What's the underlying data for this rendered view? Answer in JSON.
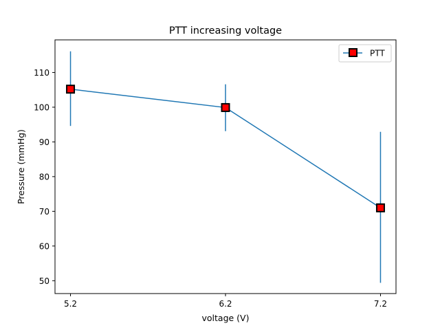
{
  "chart_data": {
    "type": "line",
    "title": "PTT increasing voltage",
    "xlabel": "voltage (V)",
    "ylabel": "Pressure (mmHg)",
    "x": [
      5.2,
      6.2,
      7.2
    ],
    "xticks": [
      "5.2",
      "6.2",
      "7.2"
    ],
    "xlim": [
      5.1,
      7.3
    ],
    "ylim": [
      46.3,
      119.4
    ],
    "yticks": [
      50,
      60,
      70,
      80,
      90,
      100,
      110
    ],
    "grid": false,
    "legend_position": "top-right",
    "series": [
      {
        "name": "PTT",
        "values": [
          105.2,
          99.9,
          71.0
        ],
        "error_low": [
          94.6,
          93.1,
          49.4
        ],
        "error_high": [
          116.1,
          106.6,
          92.9
        ],
        "line_color": "#1f77b4",
        "marker": "square",
        "marker_face_color": "#ff0000",
        "marker_edge_color": "#000000"
      }
    ]
  }
}
